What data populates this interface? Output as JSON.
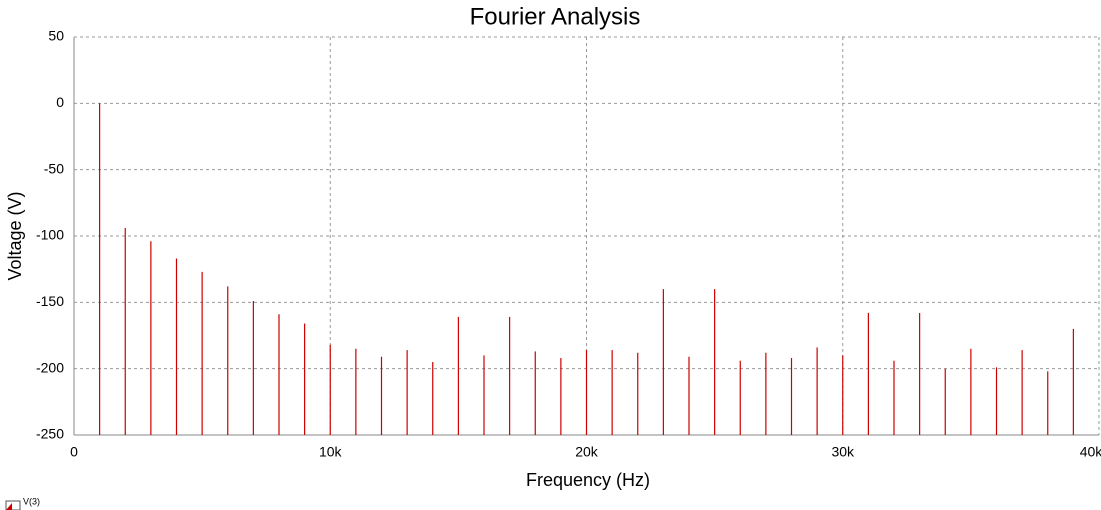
{
  "chart_data": {
    "type": "stem",
    "title": "Fourier Analysis",
    "xlabel": "Frequency (Hz)",
    "ylabel": "Voltage (V)",
    "x": [
      1000,
      2000,
      3000,
      4000,
      5000,
      6000,
      7000,
      8000,
      9000,
      10000,
      11000,
      12000,
      13000,
      14000,
      15000,
      16000,
      17000,
      18000,
      19000,
      20000,
      21000,
      22000,
      23000,
      24000,
      25000,
      26000,
      27000,
      28000,
      29000,
      30000,
      31000,
      32000,
      33000,
      34000,
      35000,
      36000,
      37000,
      38000,
      39000
    ],
    "series": [
      {
        "name": "V(3)",
        "color": "#cc0000",
        "values": [
          0,
          -94,
          -104,
          -117,
          -127,
          -138,
          -149,
          -159,
          -166,
          -182,
          -185,
          -191,
          -186,
          -195,
          -161,
          -190,
          -161,
          -187,
          -192,
          -186,
          -186,
          -188,
          -140,
          -191,
          -140,
          -194,
          -188,
          -192,
          -184,
          -190,
          -158,
          -194,
          -158,
          -200,
          -185,
          -199,
          -186,
          -202,
          -170
        ]
      }
    ],
    "xlim": [
      0,
      40000
    ],
    "ylim": [
      -250,
      50
    ],
    "xticks": [
      0,
      {
        "value": 10000,
        "label": "10k"
      },
      {
        "value": 20000,
        "label": "20k"
      },
      {
        "value": 30000,
        "label": "30k"
      },
      {
        "value": 40000,
        "label": "40k"
      }
    ],
    "yticks": [
      50,
      0,
      -50,
      -100,
      -150,
      -200,
      -250
    ],
    "grid": true
  }
}
